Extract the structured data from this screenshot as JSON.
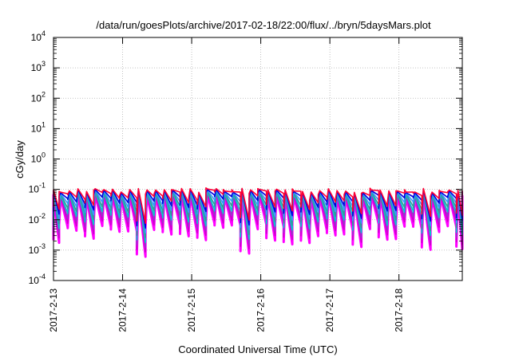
{
  "chart_data": {
    "type": "line",
    "title": "/data/run/goesPlots/archive/2017-02-18/22:00/flux/../bryn/5daysMars.plot",
    "xlabel": "Coordinated Universal Time (UTC)",
    "ylabel": "cGy/day",
    "y_scale": "log",
    "ylim": [
      0.0001,
      10000
    ],
    "y_ticks": [
      {
        "base": "10",
        "exp": "-4",
        "value": 0.0001
      },
      {
        "base": "10",
        "exp": "-3",
        "value": 0.001
      },
      {
        "base": "10",
        "exp": "-2",
        "value": 0.01
      },
      {
        "base": "10",
        "exp": "-1",
        "value": 0.1
      },
      {
        "base": "10",
        "exp": "0",
        "value": 1
      },
      {
        "base": "10",
        "exp": "1",
        "value": 10
      },
      {
        "base": "10",
        "exp": "2",
        "value": 100
      },
      {
        "base": "10",
        "exp": "3",
        "value": 1000
      },
      {
        "base": "10",
        "exp": "4",
        "value": 10000
      }
    ],
    "x_range": [
      "2017-02-13 00:00",
      "2017-02-18 22:00"
    ],
    "x_ticks": [
      "2017-2-13",
      "2017-2-14",
      "2017-2-15",
      "2017-2-16",
      "2017-2-17",
      "2017-2-18"
    ],
    "grid": true,
    "series_colors": [
      "#ff00ff",
      "#cc00cc",
      "#9933cc",
      "#00cccc",
      "#339999",
      "#3399ff",
      "#0000dd",
      "#ff0033"
    ],
    "cycles_per_day": 8,
    "cycle_peak": 0.085,
    "cycle_trough_min": 0.001,
    "cycle_trough_max": 0.016
  }
}
